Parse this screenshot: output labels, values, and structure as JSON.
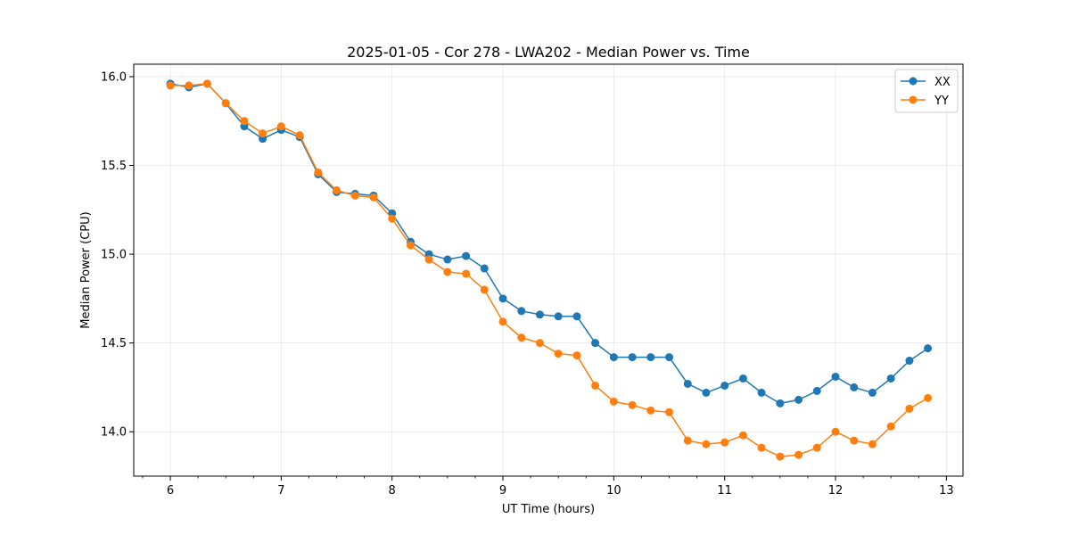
{
  "chart_data": {
    "type": "line",
    "title": "2025-01-05 - Cor 278 - LWA202 - Median Power vs. Time",
    "xlabel": "UT Time (hours)",
    "ylabel": "Median Power (CPU)",
    "xlim": [
      5.67,
      13.15
    ],
    "ylim": [
      13.75,
      16.07
    ],
    "xticks": [
      6,
      7,
      8,
      9,
      10,
      11,
      12,
      13
    ],
    "xtick_labels": [
      "6",
      "7",
      "8",
      "9",
      "10",
      "11",
      "12",
      "13"
    ],
    "xminor_step": 0.25,
    "yticks": [
      14.0,
      14.5,
      15.0,
      15.5,
      16.0
    ],
    "ytick_labels": [
      "14.0",
      "14.5",
      "15.0",
      "15.5",
      "16.0"
    ],
    "grid": true,
    "legend_position": "top-right",
    "x": [
      6.0,
      6.167,
      6.333,
      6.5,
      6.667,
      6.833,
      7.0,
      7.167,
      7.333,
      7.5,
      7.667,
      7.833,
      8.0,
      8.167,
      8.333,
      8.5,
      8.667,
      8.833,
      9.0,
      9.167,
      9.333,
      9.5,
      9.667,
      9.833,
      10.0,
      10.167,
      10.333,
      10.5,
      10.667,
      10.833,
      11.0,
      11.167,
      11.333,
      11.5,
      11.667,
      11.833,
      12.0,
      12.167,
      12.333,
      12.5,
      12.667,
      12.833
    ],
    "series": [
      {
        "name": "XX",
        "color": "#1f77b4",
        "values": [
          15.96,
          15.94,
          15.96,
          15.85,
          15.72,
          15.65,
          15.7,
          15.66,
          15.45,
          15.35,
          15.34,
          15.33,
          15.23,
          15.07,
          15.0,
          14.97,
          14.99,
          14.92,
          14.75,
          14.68,
          14.66,
          14.65,
          14.65,
          14.5,
          14.42,
          14.42,
          14.42,
          14.42,
          14.27,
          14.22,
          14.26,
          14.3,
          14.22,
          14.16,
          14.18,
          14.23,
          14.31,
          14.25,
          14.22,
          14.3,
          14.4,
          14.47
        ]
      },
      {
        "name": "YY",
        "color": "#ff7f0e",
        "values": [
          15.95,
          15.95,
          15.96,
          15.85,
          15.75,
          15.68,
          15.72,
          15.67,
          15.46,
          15.36,
          15.33,
          15.32,
          15.2,
          15.05,
          14.97,
          14.9,
          14.89,
          14.8,
          14.62,
          14.53,
          14.5,
          14.44,
          14.43,
          14.26,
          14.17,
          14.15,
          14.12,
          14.11,
          13.95,
          13.93,
          13.94,
          13.98,
          13.91,
          13.86,
          13.87,
          13.91,
          14.0,
          13.95,
          13.93,
          14.03,
          14.13,
          14.19
        ]
      }
    ]
  }
}
